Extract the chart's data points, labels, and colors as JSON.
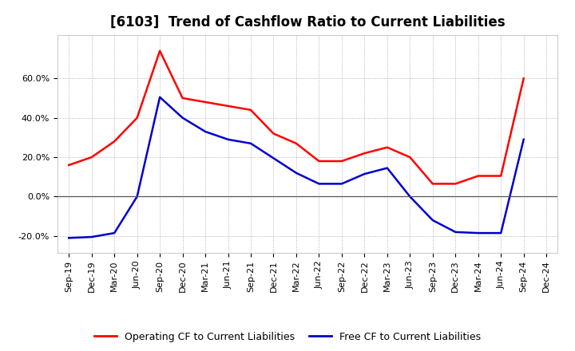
{
  "title": "[6103]  Trend of Cashflow Ratio to Current Liabilities",
  "x_labels": [
    "Sep-19",
    "Dec-19",
    "Mar-20",
    "Jun-20",
    "Sep-20",
    "Dec-20",
    "Mar-21",
    "Jun-21",
    "Sep-21",
    "Dec-21",
    "Mar-22",
    "Jun-22",
    "Sep-22",
    "Dec-22",
    "Mar-23",
    "Jun-23",
    "Sep-23",
    "Dec-23",
    "Mar-24",
    "Jun-24",
    "Sep-24",
    "Dec-24"
  ],
  "operating_cf": [
    0.16,
    0.2,
    0.28,
    0.4,
    0.74,
    0.5,
    0.48,
    0.46,
    0.44,
    0.32,
    0.27,
    0.18,
    0.18,
    0.22,
    0.25,
    0.2,
    0.065,
    0.065,
    0.105,
    0.105,
    0.6,
    null
  ],
  "free_cf": [
    -0.21,
    -0.205,
    -0.185,
    0.0,
    0.505,
    0.4,
    0.33,
    0.29,
    0.27,
    0.195,
    0.12,
    0.065,
    0.065,
    0.115,
    0.145,
    0.0,
    -0.12,
    -0.18,
    -0.185,
    -0.185,
    0.29,
    null
  ],
  "operating_color": "#ff0000",
  "free_color": "#0000cc",
  "ylim": [
    -0.285,
    0.82
  ],
  "yticks": [
    -0.2,
    0.0,
    0.2,
    0.4,
    0.6
  ],
  "ytick_labels": [
    "-20.0%",
    "0.0%",
    "20.0%",
    "40.0%",
    "60.0%"
  ],
  "title_fontsize": 12,
  "tick_fontsize": 8,
  "legend_fontsize": 9,
  "background_color": "#ffffff",
  "grid_color": "#999999"
}
